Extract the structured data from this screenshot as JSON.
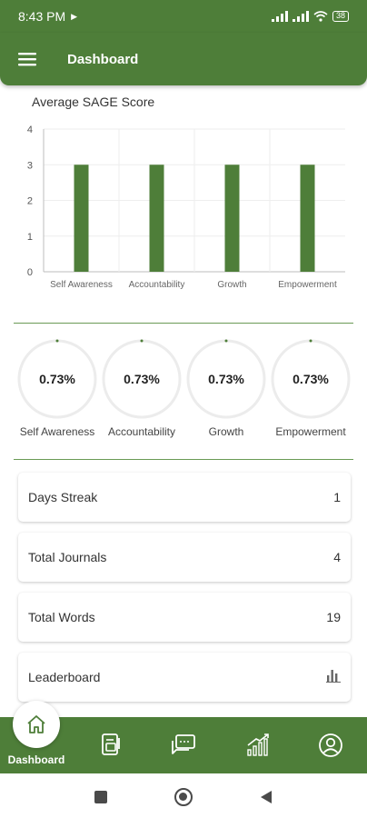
{
  "status_bar": {
    "time": "8:43 PM",
    "battery": "38"
  },
  "app_bar": {
    "title": "Dashboard",
    "menu_icon": "hamburger-menu-icon"
  },
  "chart": {
    "title": "Average SAGE Score"
  },
  "chart_data": {
    "type": "bar",
    "title": "Average SAGE Score",
    "categories": [
      "Self Awareness",
      "Accountability",
      "Growth",
      "Empowerment"
    ],
    "values": [
      3,
      3,
      3,
      3
    ],
    "ylim": [
      0,
      4
    ],
    "yticks": [
      "0",
      "1",
      "2",
      "3",
      "4"
    ],
    "grid": true,
    "bar_color": "#4e7e39"
  },
  "rings": [
    {
      "value": "0.73%",
      "label": "Self Awareness"
    },
    {
      "value": "0.73%",
      "label": "Accountability"
    },
    {
      "value": "0.73%",
      "label": "Growth"
    },
    {
      "value": "0.73%",
      "label": "Empowerment"
    }
  ],
  "stats": [
    {
      "label": "Days Streak",
      "value": "1"
    },
    {
      "label": "Total Journals",
      "value": "4"
    },
    {
      "label": "Total Words",
      "value": "19"
    },
    {
      "label": "Leaderboard",
      "icon": "bar-chart-icon"
    }
  ],
  "bottom_nav": {
    "active_label": "Dashboard",
    "items": [
      "home-icon",
      "journal-icon",
      "chat-icon",
      "growth-chart-icon",
      "profile-icon"
    ]
  },
  "colors": {
    "primary": "#4e7e39",
    "bar": "#4e7e39",
    "ring_track": "#ececec"
  }
}
